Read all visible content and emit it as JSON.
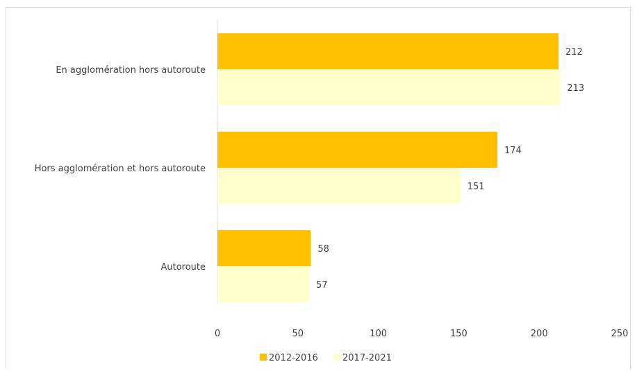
{
  "chart_data": {
    "type": "bar",
    "orientation": "horizontal",
    "categories": [
      "En agglomération hors autoroute",
      "Hors agglomération et hors autoroute",
      "Autoroute"
    ],
    "series": [
      {
        "name": "2012-2016",
        "values": [
          212,
          174,
          58
        ],
        "color": "#ffc000"
      },
      {
        "name": "2017-2021",
        "values": [
          213,
          151,
          57
        ],
        "color": "#ffffcc"
      }
    ],
    "xlim": [
      0,
      250
    ],
    "xticks": [
      "0",
      "50",
      "100",
      "150",
      "200",
      "250"
    ],
    "grid": false,
    "legend": "bottom"
  }
}
